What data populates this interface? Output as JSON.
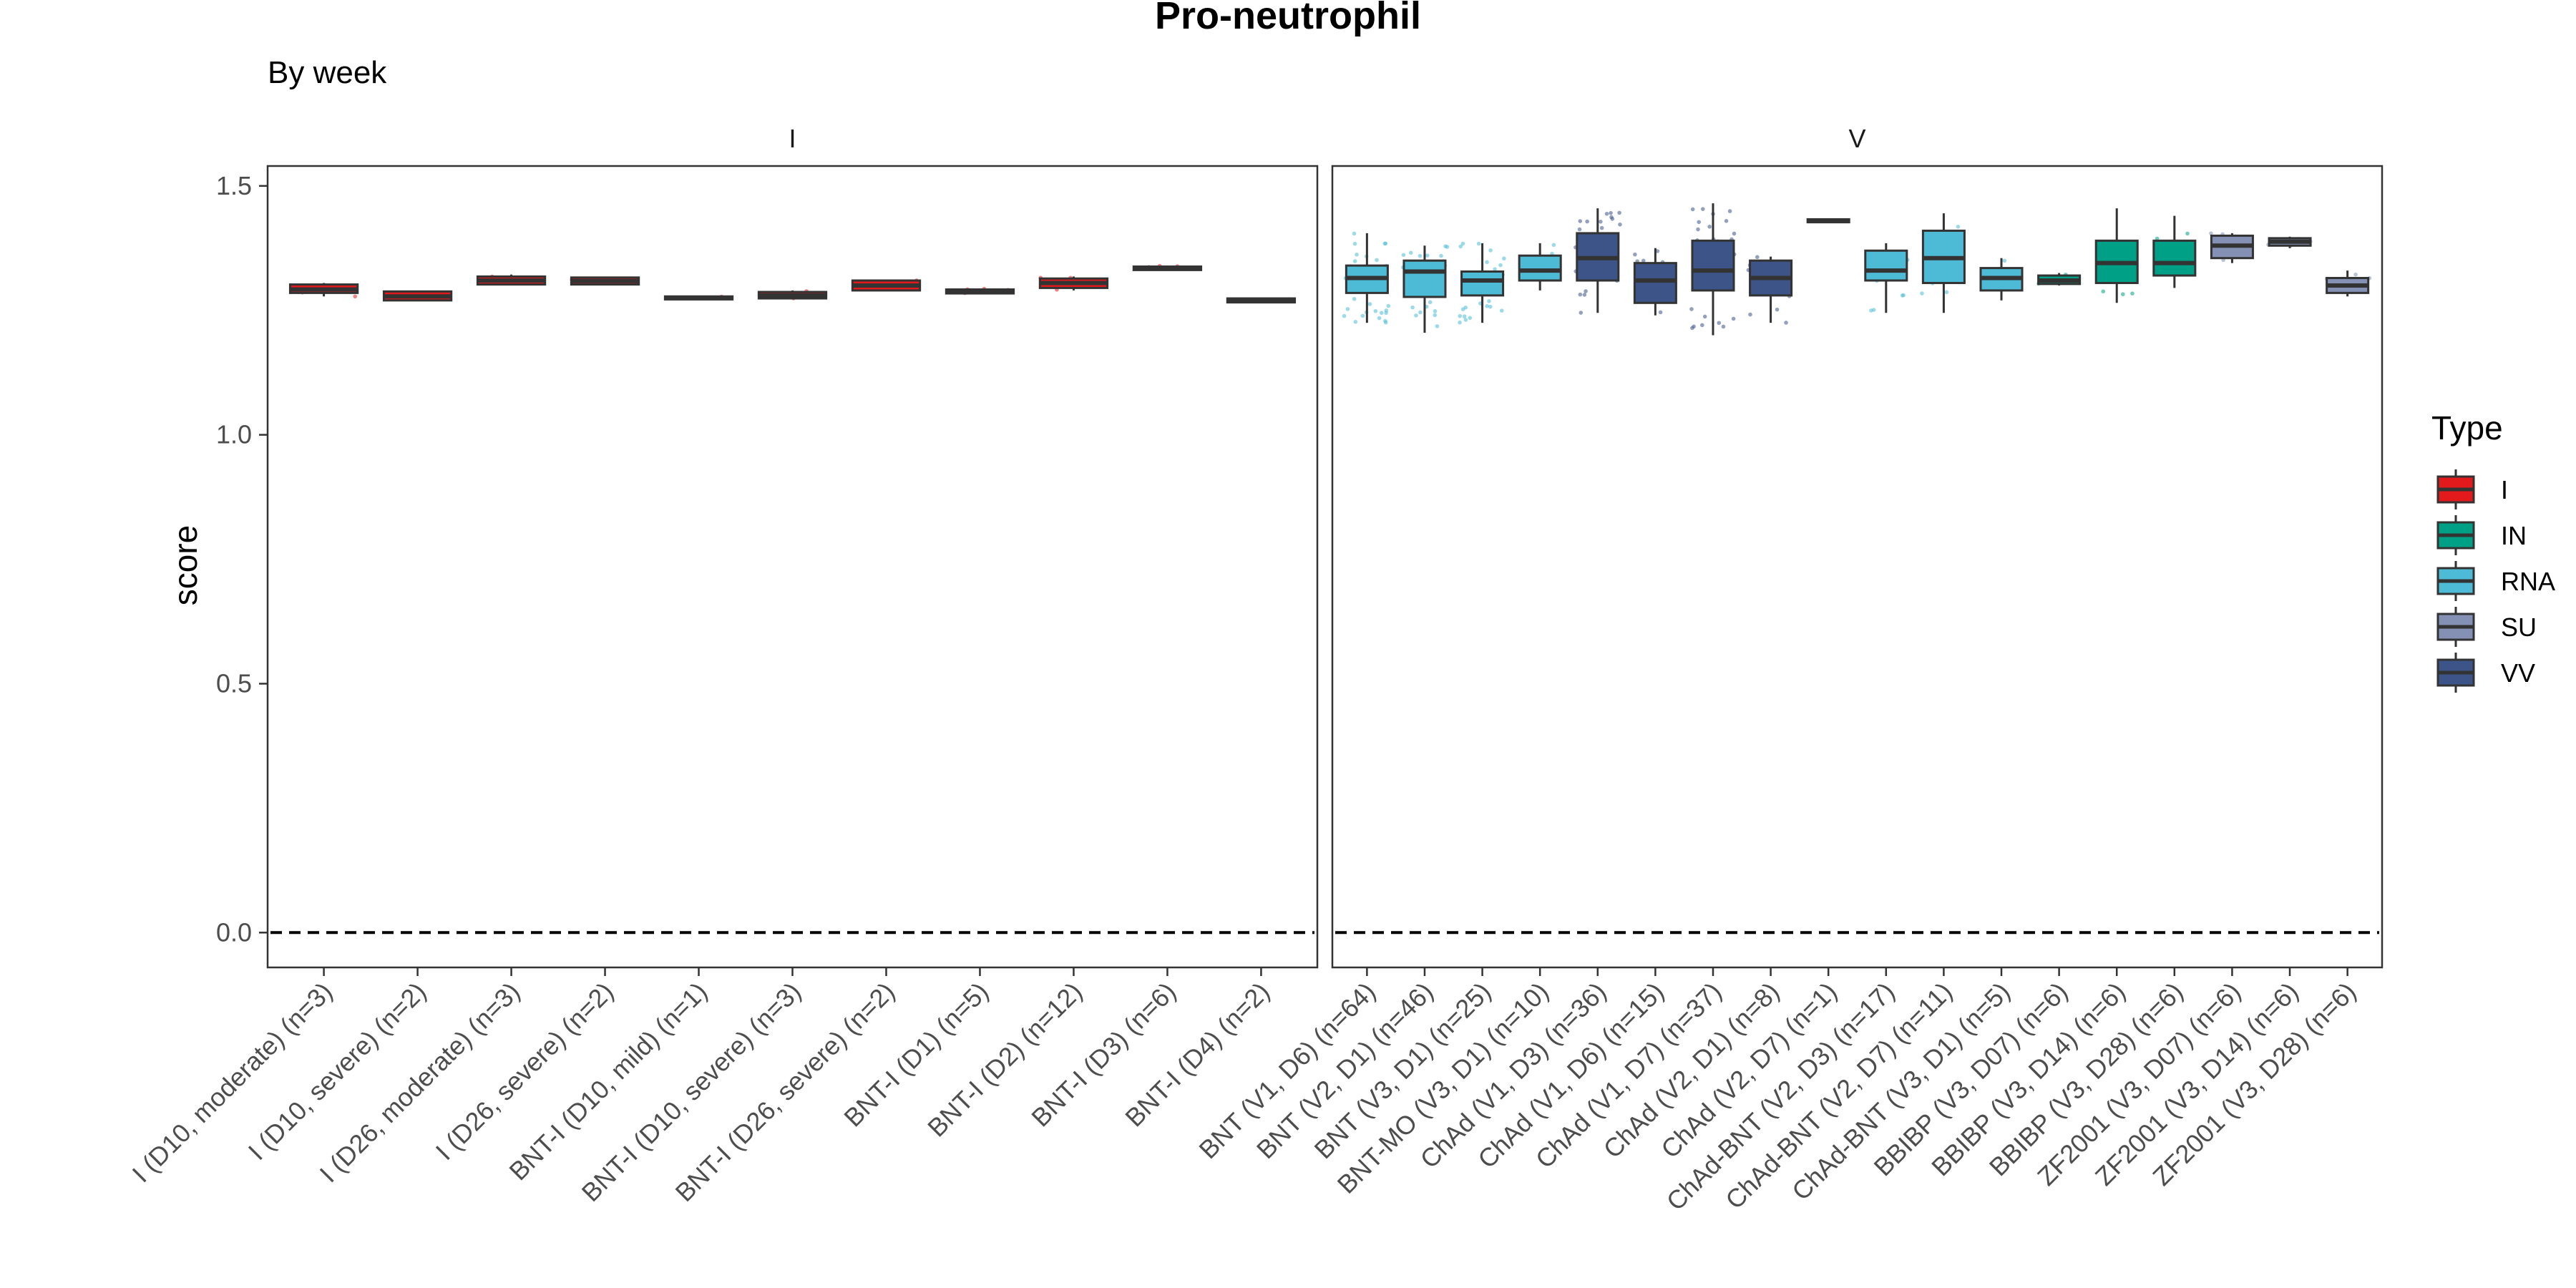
{
  "chart_data": {
    "type": "box",
    "title": "Pro-neutrophil",
    "subtitle": "By week",
    "ylabel": "score",
    "xlabel": "",
    "ylim": [
      -0.07,
      1.54
    ],
    "yticks": [
      0.0,
      0.5,
      1.0,
      1.5
    ],
    "ytick_labels": [
      "0.0",
      "0.5",
      "1.0",
      "1.5"
    ],
    "reference_line": 0,
    "legend": {
      "title": "Type",
      "position": "right",
      "entries": [
        {
          "label": "I",
          "color": "#E31A1C"
        },
        {
          "label": "IN",
          "color": "#00A087"
        },
        {
          "label": "RNA",
          "color": "#4DBBD5"
        },
        {
          "label": "SU",
          "color": "#8491B4"
        },
        {
          "label": "VV",
          "color": "#3C5488"
        }
      ]
    },
    "panels": [
      {
        "strip": "I",
        "categories": [
          {
            "label": "I (D10, moderate) (n=3)",
            "type": "I",
            "q1": 1.285,
            "median": 1.292,
            "q3": 1.302,
            "whisker_low": 1.278,
            "whisker_high": 1.305
          },
          {
            "label": "I (D10, severe) (n=2)",
            "type": "I",
            "q1": 1.27,
            "median": 1.278,
            "q3": 1.288,
            "whisker_low": 1.27,
            "whisker_high": 1.288
          },
          {
            "label": "I (D26, moderate) (n=3)",
            "type": "I",
            "q1": 1.302,
            "median": 1.31,
            "q3": 1.318,
            "whisker_low": 1.3,
            "whisker_high": 1.322
          },
          {
            "label": "I (D26, severe) (n=2)",
            "type": "I",
            "q1": 1.302,
            "median": 1.309,
            "q3": 1.316,
            "whisker_low": 1.302,
            "whisker_high": 1.316
          },
          {
            "label": "BNT-I (D10, mild) (n=1)",
            "type": "I",
            "q1": 1.272,
            "median": 1.275,
            "q3": 1.278,
            "whisker_low": 1.272,
            "whisker_high": 1.278
          },
          {
            "label": "BNT-I (D10, severe) (n=3)",
            "type": "I",
            "q1": 1.274,
            "median": 1.28,
            "q3": 1.287,
            "whisker_low": 1.272,
            "whisker_high": 1.29
          },
          {
            "label": "BNT-I (D26, severe) (n=2)",
            "type": "I",
            "q1": 1.29,
            "median": 1.3,
            "q3": 1.31,
            "whisker_low": 1.29,
            "whisker_high": 1.312
          },
          {
            "label": "BNT-I (D1) (n=5)",
            "type": "I",
            "q1": 1.284,
            "median": 1.288,
            "q3": 1.292,
            "whisker_low": 1.283,
            "whisker_high": 1.294
          },
          {
            "label": "BNT-I (D2) (n=12)",
            "type": "I",
            "q1": 1.295,
            "median": 1.305,
            "q3": 1.314,
            "whisker_low": 1.29,
            "whisker_high": 1.318
          },
          {
            "label": "BNT-I (D3) (n=6)",
            "type": "I",
            "q1": 1.331,
            "median": 1.335,
            "q3": 1.338,
            "whisker_low": 1.33,
            "whisker_high": 1.34
          },
          {
            "label": "BNT-I (D4) (n=2)",
            "type": "I",
            "q1": 1.266,
            "median": 1.27,
            "q3": 1.274,
            "whisker_low": 1.266,
            "whisker_high": 1.274
          }
        ]
      },
      {
        "strip": "V",
        "categories": [
          {
            "label": "BNT (V1, D6) (n=64)",
            "type": "RNA",
            "q1": 1.285,
            "median": 1.315,
            "q3": 1.34,
            "whisker_low": 1.225,
            "whisker_high": 1.405
          },
          {
            "label": "BNT (V2, D1) (n=46)",
            "type": "RNA",
            "q1": 1.277,
            "median": 1.328,
            "q3": 1.35,
            "whisker_low": 1.205,
            "whisker_high": 1.38
          },
          {
            "label": "BNT (V3, D1) (n=25)",
            "type": "RNA",
            "q1": 1.28,
            "median": 1.31,
            "q3": 1.328,
            "whisker_low": 1.225,
            "whisker_high": 1.385
          },
          {
            "label": "BNT-MO (V3, D1) (n=10)",
            "type": "RNA",
            "q1": 1.31,
            "median": 1.33,
            "q3": 1.36,
            "whisker_low": 1.29,
            "whisker_high": 1.385
          },
          {
            "label": "ChAd (V1, D3) (n=36)",
            "type": "VV",
            "q1": 1.31,
            "median": 1.355,
            "q3": 1.405,
            "whisker_low": 1.245,
            "whisker_high": 1.455
          },
          {
            "label": "ChAd (V1, D6) (n=15)",
            "type": "VV",
            "q1": 1.265,
            "median": 1.31,
            "q3": 1.345,
            "whisker_low": 1.24,
            "whisker_high": 1.375
          },
          {
            "label": "ChAd (V1, D7) (n=37)",
            "type": "VV",
            "q1": 1.29,
            "median": 1.33,
            "q3": 1.39,
            "whisker_low": 1.2,
            "whisker_high": 1.465
          },
          {
            "label": "ChAd (V2, D1) (n=8)",
            "type": "VV",
            "q1": 1.28,
            "median": 1.315,
            "q3": 1.35,
            "whisker_low": 1.225,
            "whisker_high": 1.358
          },
          {
            "label": "ChAd (V2, D7) (n=1)",
            "type": "VV",
            "q1": 1.427,
            "median": 1.43,
            "q3": 1.433,
            "whisker_low": 1.427,
            "whisker_high": 1.433
          },
          {
            "label": "ChAd-BNT (V2, D3) (n=17)",
            "type": "RNA",
            "q1": 1.31,
            "median": 1.33,
            "q3": 1.37,
            "whisker_low": 1.245,
            "whisker_high": 1.385
          },
          {
            "label": "ChAd-BNT (V2, D7) (n=11)",
            "type": "RNA",
            "q1": 1.305,
            "median": 1.355,
            "q3": 1.41,
            "whisker_low": 1.245,
            "whisker_high": 1.445
          },
          {
            "label": "ChAd-BNT (V3, D1) (n=5)",
            "type": "RNA",
            "q1": 1.29,
            "median": 1.315,
            "q3": 1.335,
            "whisker_low": 1.27,
            "whisker_high": 1.355
          },
          {
            "label": "BBIBP (V3, D07) (n=6)",
            "type": "IN",
            "q1": 1.303,
            "median": 1.31,
            "q3": 1.32,
            "whisker_low": 1.3,
            "whisker_high": 1.325
          },
          {
            "label": "BBIBP (V3, D14) (n=6)",
            "type": "IN",
            "q1": 1.305,
            "median": 1.345,
            "q3": 1.39,
            "whisker_low": 1.265,
            "whisker_high": 1.455
          },
          {
            "label": "BBIBP (V3, D28) (n=6)",
            "type": "IN",
            "q1": 1.32,
            "median": 1.345,
            "q3": 1.39,
            "whisker_low": 1.295,
            "whisker_high": 1.44
          },
          {
            "label": "ZF2001 (V3, D07) (n=6)",
            "type": "SU",
            "q1": 1.355,
            "median": 1.38,
            "q3": 1.4,
            "whisker_low": 1.345,
            "whisker_high": 1.405
          },
          {
            "label": "ZF2001 (V3, D14) (n=6)",
            "type": "SU",
            "q1": 1.38,
            "median": 1.388,
            "q3": 1.395,
            "whisker_low": 1.375,
            "whisker_high": 1.398
          },
          {
            "label": "ZF2001 (V3, D28) (n=6)",
            "type": "SU",
            "q1": 1.285,
            "median": 1.3,
            "q3": 1.315,
            "whisker_low": 1.278,
            "whisker_high": 1.33
          }
        ]
      }
    ]
  }
}
